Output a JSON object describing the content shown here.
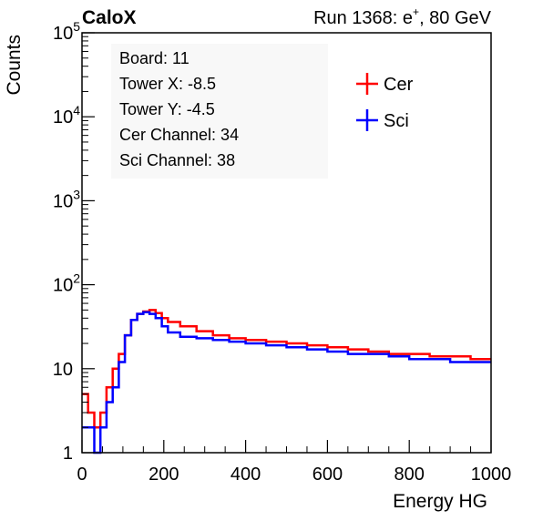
{
  "chart_data": {
    "type": "line",
    "style": "step-histogram",
    "title": "CaloX",
    "run_label_prefix": "Run 1368: e",
    "run_label_superscript": "+",
    "run_label_suffix": ", 80 GeV",
    "xlabel": "Energy HG",
    "ylabel": "Counts",
    "xlim": [
      0,
      1000
    ],
    "ylim": [
      1,
      100000
    ],
    "y_scale": "log",
    "grid": false,
    "x_ticks": [
      {
        "value": 0,
        "label": "0"
      },
      {
        "value": 200,
        "label": "200"
      },
      {
        "value": 400,
        "label": "400"
      },
      {
        "value": 600,
        "label": "600"
      },
      {
        "value": 800,
        "label": "800"
      },
      {
        "value": 1000,
        "label": "1000"
      }
    ],
    "y_ticks": [
      {
        "value": 1,
        "base": "1",
        "exp": ""
      },
      {
        "value": 10,
        "base": "10",
        "exp": ""
      },
      {
        "value": 100,
        "base": "10",
        "exp": "2"
      },
      {
        "value": 1000,
        "base": "10",
        "exp": "3"
      },
      {
        "value": 10000,
        "base": "10",
        "exp": "4"
      },
      {
        "value": 100000,
        "base": "10",
        "exp": "5"
      }
    ],
    "info_box": [
      "Board: 11",
      "Tower X: -8.5",
      "Tower Y: -4.5",
      "Cer Channel: 34",
      "Sci Channel: 38"
    ],
    "legend_position": "top-right",
    "series": [
      {
        "name": "Cer",
        "color": "#ff0000",
        "x": [
          0,
          15,
          30,
          45,
          60,
          75,
          90,
          105,
          120,
          135,
          150,
          165,
          180,
          195,
          210,
          240,
          280,
          320,
          360,
          400,
          450,
          500,
          550,
          600,
          650,
          700,
          750,
          800,
          850,
          900,
          950,
          1000
        ],
        "values": [
          5,
          3,
          2,
          3,
          6,
          10,
          15,
          25,
          38,
          45,
          48,
          50,
          46,
          40,
          36,
          32,
          28,
          25,
          23,
          22,
          21,
          20,
          19,
          18,
          17,
          16,
          15,
          15,
          14,
          14,
          13,
          13
        ]
      },
      {
        "name": "Sci",
        "color": "#0000ff",
        "x": [
          0,
          15,
          30,
          45,
          60,
          75,
          90,
          105,
          120,
          135,
          150,
          165,
          180,
          195,
          210,
          240,
          280,
          320,
          360,
          400,
          450,
          500,
          550,
          600,
          650,
          700,
          750,
          800,
          850,
          900,
          950,
          1000
        ],
        "values": [
          2,
          2,
          1,
          2,
          4,
          6,
          12,
          25,
          38,
          45,
          47,
          45,
          40,
          32,
          27,
          24,
          23,
          22,
          21,
          20,
          19,
          18,
          17,
          16,
          15,
          15,
          14,
          13,
          13,
          12,
          12,
          12
        ]
      }
    ]
  }
}
